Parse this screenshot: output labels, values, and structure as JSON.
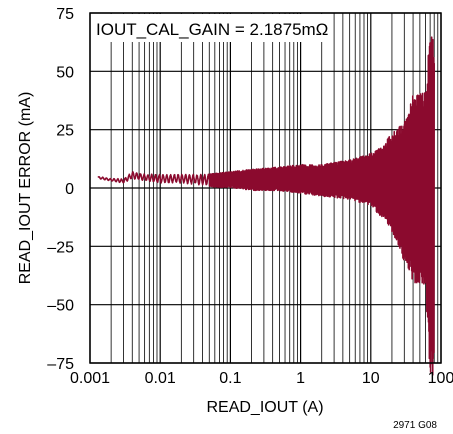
{
  "chart_data": {
    "type": "line",
    "title": "",
    "annotation": "IOUT_CAL_GAIN = 2.1875mΩ",
    "xlabel": "READ_IOUT (A)",
    "ylabel": "READ_IOUT ERROR (mA)",
    "figure_id": "2971 G08",
    "x_scale": "log",
    "xlim": [
      0.001,
      100
    ],
    "ylim": [
      -75,
      75
    ],
    "x_ticks": [
      {
        "value": 0.001,
        "label": "0.001"
      },
      {
        "value": 0.01,
        "label": "0.01"
      },
      {
        "value": 0.1,
        "label": "0.1"
      },
      {
        "value": 1,
        "label": "1"
      },
      {
        "value": 10,
        "label": "10"
      },
      {
        "value": 100,
        "label": "100"
      }
    ],
    "y_ticks": [
      {
        "value": -75,
        "label": "–75"
      },
      {
        "value": -50,
        "label": "–50"
      },
      {
        "value": -25,
        "label": "–25"
      },
      {
        "value": 0,
        "label": "0"
      },
      {
        "value": 25,
        "label": "25"
      },
      {
        "value": 50,
        "label": "50"
      },
      {
        "value": 75,
        "label": "75"
      }
    ],
    "grid": true,
    "line_color": "#8b0a2e",
    "series": [
      {
        "name": "",
        "envelope": [
          {
            "x": 0.0013,
            "upper": 5,
            "lower": 4
          },
          {
            "x": 0.002,
            "upper": 4,
            "lower": 3
          },
          {
            "x": 0.003,
            "upper": 4,
            "lower": 2
          },
          {
            "x": 0.004,
            "upper": 7,
            "lower": 4
          },
          {
            "x": 0.006,
            "upper": 6,
            "lower": 3
          },
          {
            "x": 0.01,
            "upper": 6,
            "lower": 2
          },
          {
            "x": 0.02,
            "upper": 6,
            "lower": 2
          },
          {
            "x": 0.05,
            "upper": 6,
            "lower": 1
          },
          {
            "x": 0.1,
            "upper": 7,
            "lower": 1
          },
          {
            "x": 0.2,
            "upper": 8,
            "lower": 0
          },
          {
            "x": 0.5,
            "upper": 9,
            "lower": 0
          },
          {
            "x": 1,
            "upper": 10,
            "lower": -1
          },
          {
            "x": 2,
            "upper": 10,
            "lower": -2
          },
          {
            "x": 5,
            "upper": 12,
            "lower": -3
          },
          {
            "x": 10,
            "upper": 15,
            "lower": -5
          },
          {
            "x": 15,
            "upper": 18,
            "lower": -10
          },
          {
            "x": 20,
            "upper": 24,
            "lower": -14
          },
          {
            "x": 30,
            "upper": 28,
            "lower": -25
          },
          {
            "x": 40,
            "upper": 40,
            "lower": -32
          },
          {
            "x": 60,
            "upper": 42,
            "lower": -32
          },
          {
            "x": 70,
            "upper": 66,
            "lower": -64
          },
          {
            "x": 80,
            "upper": 66,
            "lower": -66
          }
        ]
      }
    ]
  }
}
